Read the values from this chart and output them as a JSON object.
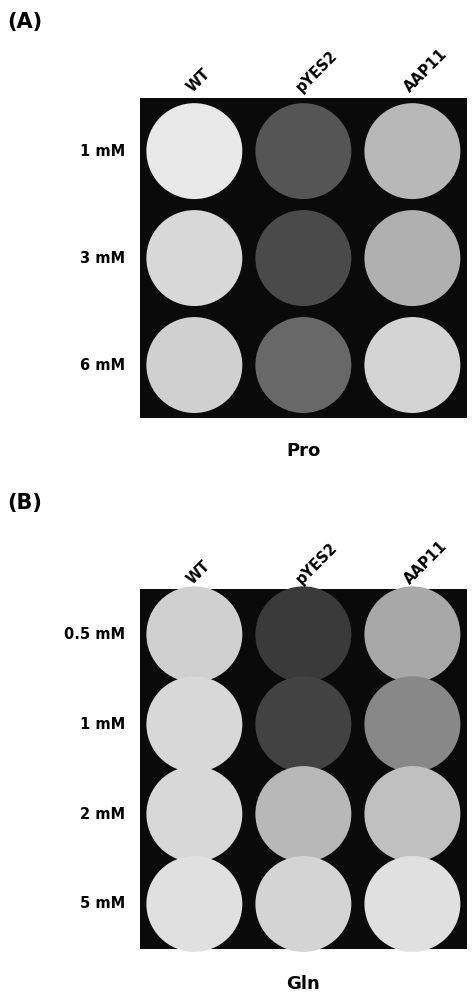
{
  "panel_A": {
    "label": "(A)",
    "columns": [
      "WT",
      "pYES2",
      "AAP11"
    ],
    "rows": [
      "1 mM",
      "3 mM",
      "6 mM"
    ],
    "substrate": "Pro",
    "colony_colors": [
      [
        "#e8e8e8",
        "#555555",
        "#b8b8b8"
      ],
      [
        "#d8d8d8",
        "#4a4a4a",
        "#b0b0b0"
      ],
      [
        "#d0d0d0",
        "#686868",
        "#d4d4d4"
      ]
    ]
  },
  "panel_B": {
    "label": "(B)",
    "columns": [
      "WT",
      "pYES2",
      "AAP11"
    ],
    "rows": [
      "0.5 mM",
      "1 mM",
      "2 mM",
      "5 mM"
    ],
    "substrate": "Gln",
    "colony_colors": [
      [
        "#d0d0d0",
        "#3a3a3a",
        "#a8a8a8"
      ],
      [
        "#d8d8d8",
        "#424242",
        "#888888"
      ],
      [
        "#d8d8d8",
        "#b8b8b8",
        "#c0c0c0"
      ],
      [
        "#e0e0e0",
        "#d4d4d4",
        "#e0e0e0"
      ]
    ]
  },
  "fig_width": 4.74,
  "fig_height": 10.01,
  "dpi": 100
}
